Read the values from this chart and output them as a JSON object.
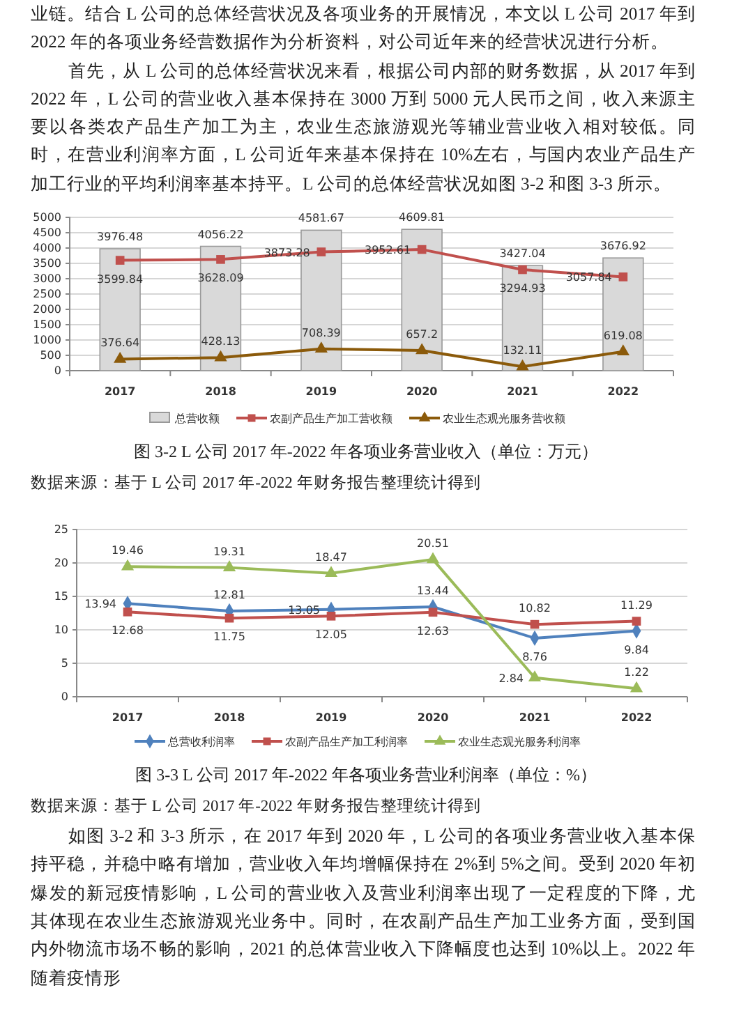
{
  "chart_data": [
    {
      "type": "bar",
      "title": "图 3-2 L 公司 2017 年-2022 年各项业务营业收入（单位：万元）",
      "annotations": [
        "业链。结合 L 公司的总体经营状况及各项业务的开展情况，本文以 L 公司 2017 年到 2022 年的各项业务经营数据作为分析资料，对公司近年来的经营状况进行分析。",
        "首先，从 L 公司的总体经营状况来看，根据公司内部的财务数据，从 2017 年到 2022 年，L 公司的营业收入基本保持在 3000 万到 5000 元人民币之间，收入来源主要以各类农产品生产加工为主，农业生态旅游观光等辅业营业收入相对较低。同时，在营业利润率方面，L 公司近年来基本保持在 10%左右，与国内农业产品生产加工行业的平均利润率基本持平。L 公司的总体经营状况如图 3-2 和图 3-3 所示。",
        "数据来源：基于 L 公司 2017 年-2022 年财务报告整理统计得到"
      ],
      "categories": [
        "2017",
        "2018",
        "2019",
        "2020",
        "2021",
        "2022"
      ],
      "series": [
        {
          "name": "总营收额",
          "color": "#d9d9d9",
          "values": [
            3976.48,
            4056.22,
            4581.67,
            4609.81,
            3427.04,
            3676.92
          ]
        },
        {
          "name": "农副产品生产加工营收额",
          "type": "line",
          "color": "#c0504d",
          "marker": "square",
          "values": [
            3599.84,
            3628.09,
            3873.28,
            3952.61,
            3294.93,
            3057.84
          ]
        },
        {
          "name": "农业生态观光服务营收额",
          "type": "line",
          "color": "#8b5a0a",
          "marker": "triangle",
          "values": [
            376.64,
            428.13,
            708.39,
            657.2,
            132.11,
            619.08
          ]
        }
      ],
      "ylim": [
        0,
        5000
      ],
      "yticks": [
        0,
        500,
        1000,
        1500,
        2000,
        2500,
        3000,
        3500,
        4000,
        4500,
        5000
      ],
      "grid": "y",
      "legend": "bottom",
      "data_labels": true
    },
    {
      "type": "line",
      "title": "图 3-3 L 公司 2017 年-2022 年各项业务营业利润率（单位：%）",
      "annotations": [
        "数据来源：基于 L 公司 2017 年-2022 年财务报告整理统计得到",
        "如图 3-2 和 3-3 所示，在 2017 年到 2020 年，L 公司的各项业务营业收入基本保持平稳，并稳中略有增加，营业收入年均增幅保持在 2%到 5%之间。受到 2020 年初爆发的新冠疫情影响，L 公司的营业收入及营业利润率出现了一定程度的下降，尤其体现在农业生态旅游观光业务中。同时，在农副产品生产加工业务方面，受到国内外物流市场不畅的影响，2021 的总体营业收入下降幅度也达到 10%以上。2022 年随着疫情形"
      ],
      "categories": [
        "2017",
        "2018",
        "2019",
        "2020",
        "2021",
        "2022"
      ],
      "series": [
        {
          "name": "总营收利润率",
          "color": "#4f81bd",
          "marker": "diamond",
          "values": [
            13.94,
            12.81,
            13.05,
            13.44,
            8.76,
            9.84
          ]
        },
        {
          "name": "农副产品生产加工利润率",
          "color": "#c0504d",
          "marker": "square",
          "values": [
            12.68,
            11.75,
            12.05,
            12.63,
            10.82,
            11.29
          ]
        },
        {
          "name": "农业生态观光服务利润率",
          "color": "#9bbb59",
          "marker": "triangle",
          "values": [
            19.46,
            19.31,
            18.47,
            20.51,
            2.84,
            1.22
          ]
        }
      ],
      "ylim": [
        0,
        25
      ],
      "yticks": [
        0,
        5,
        10,
        15,
        20,
        25
      ],
      "grid": "y",
      "legend": "bottom",
      "data_labels": true
    }
  ]
}
